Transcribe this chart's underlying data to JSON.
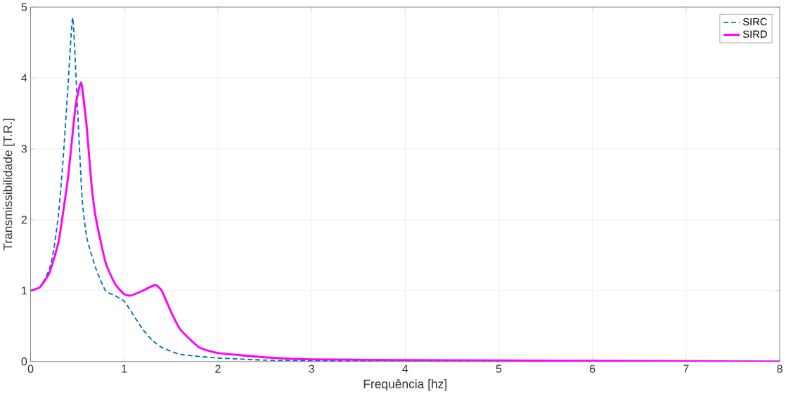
{
  "chart_data": {
    "type": "line",
    "xlabel": "Frequência [hz]",
    "ylabel": "Transmissibilidade [T.R.]",
    "xlim": [
      0,
      8
    ],
    "ylim": [
      0,
      5
    ],
    "xticks": [
      0,
      1,
      2,
      3,
      4,
      5,
      6,
      7,
      8
    ],
    "yticks": [
      0,
      1,
      2,
      3,
      4,
      5
    ],
    "grid": true,
    "legend": "top right",
    "series": [
      {
        "name": "SIRC",
        "color": "#0072bd",
        "line_style": "dashed",
        "x": [
          0,
          0.1,
          0.2,
          0.25,
          0.3,
          0.35,
          0.4,
          0.45,
          0.5,
          0.55,
          0.6,
          0.7,
          0.8,
          0.9,
          1.0,
          1.1,
          1.2,
          1.3,
          1.4,
          1.6,
          2.0,
          2.5,
          3,
          4,
          8
        ],
        "values": [
          1.0,
          1.05,
          1.3,
          1.6,
          2.1,
          2.9,
          3.9,
          4.85,
          3.6,
          2.3,
          1.75,
          1.3,
          1.0,
          0.93,
          0.85,
          0.65,
          0.45,
          0.3,
          0.2,
          0.1,
          0.05,
          0.02,
          0.01,
          0.01,
          0
        ]
      },
      {
        "name": "SIRD",
        "color": "#ff00ff",
        "line_style": "solid",
        "x": [
          0,
          0.1,
          0.2,
          0.3,
          0.4,
          0.48,
          0.54,
          0.6,
          0.65,
          0.7,
          0.8,
          0.9,
          1.0,
          1.07,
          1.2,
          1.33,
          1.4,
          1.5,
          1.6,
          1.8,
          2.0,
          2.5,
          3,
          4,
          6,
          8
        ],
        "values": [
          1.0,
          1.05,
          1.25,
          1.7,
          2.6,
          3.6,
          3.93,
          3.3,
          2.5,
          2.0,
          1.4,
          1.1,
          0.95,
          0.93,
          1.0,
          1.08,
          1.0,
          0.7,
          0.45,
          0.2,
          0.12,
          0.06,
          0.03,
          0.02,
          0.01,
          0
        ]
      }
    ]
  }
}
